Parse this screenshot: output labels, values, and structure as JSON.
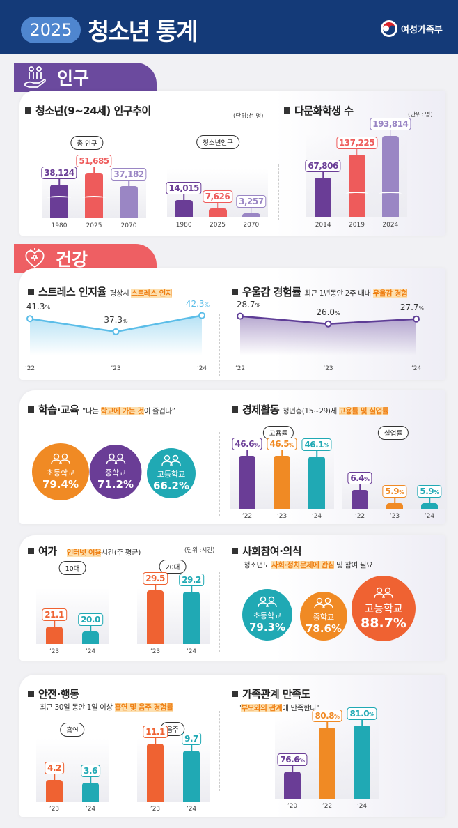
{
  "header": {
    "year": "2025",
    "title": "청소년 통계",
    "ministry": "여성가족부"
  },
  "colors": {
    "navy": "#143a78",
    "purple": "#6a3d96",
    "red": "#ee5b5b",
    "lavender": "#9a86c4",
    "orange": "#f08a24",
    "teal": "#20a9b4",
    "orange_red": "#ef6232",
    "sky": "#5bbde8"
  },
  "population": {
    "tab": "인구",
    "tab_icon": "hand-people-icon",
    "trend_title": "청소년(9~24세) 인구추이",
    "trend_unit": "(단위:천 명)",
    "multi_title": "다문화학생 수",
    "multi_unit": "(단위: 명)"
  },
  "health": {
    "tab": "건강",
    "tab_icon": "heart-puzzle-icon",
    "stress_title": "스트레스 인지율",
    "stress_sub_pre": "평상시 ",
    "stress_sub_hl": "스트레스 인지",
    "dep_title": "우울감 경험률",
    "dep_sub_pre": "최근 1년동안 2주 내내 ",
    "dep_sub_hl": "우울감 경험"
  },
  "education": {
    "title": "학습·교육",
    "sub_pre": "“나는 ",
    "sub_hl": "학교에 가는 것",
    "sub_post": "이 즐겁다”",
    "circles": [
      {
        "label": "초등학교",
        "value": "79.4%",
        "color": "#f08a24"
      },
      {
        "label": "중학교",
        "value": "71.2%",
        "color": "#6a3d96"
      },
      {
        "label": "고등학교",
        "value": "66.2%",
        "color": "#20a9b4"
      }
    ]
  },
  "economy": {
    "title": "경제활동",
    "sub_pre": "청년층(15~29)세 ",
    "sub_hl": "고용률 및 실업률"
  },
  "leisure": {
    "title": "여가",
    "sub_hl": "인터넷 이용",
    "sub_post": "시간(주 평균)",
    "unit": "(단위 :시간)"
  },
  "social": {
    "title": "사회참여·의식",
    "sub_pre": "청소년도 ",
    "sub_hl": "사회·정치문제에 관심",
    "sub_post": " 및 참여 필요",
    "circles": [
      {
        "label": "초등학교",
        "value": "79.3%",
        "color": "#20a9b4"
      },
      {
        "label": "중학교",
        "value": "78.6%",
        "color": "#f08a24"
      },
      {
        "label": "고등학교",
        "value": "88.7%",
        "color": "#ef6232"
      }
    ]
  },
  "safety": {
    "title": "안전·행동",
    "sub_pre": "최근 30일 동안 1일 이상 ",
    "sub_hl": "흡연 및 음주 경험률"
  },
  "family": {
    "title": "가족관계 만족도",
    "sub_pre": "\"",
    "sub_hl": "부모와의 관계",
    "sub_post": "에 만족한다\""
  },
  "chart_data": [
    {
      "type": "bar",
      "pill": "총 인구",
      "categories": [
        "1980",
        "2025",
        "2070"
      ],
      "values": [
        38124,
        51685,
        37182
      ],
      "colors": [
        "#6a3d96",
        "#ee5b5b",
        "#9a86c4"
      ],
      "format": "comma",
      "ylim": [
        0,
        56000
      ],
      "axis_break": true
    },
    {
      "type": "bar",
      "pill": "청소년인구",
      "categories": [
        "1980",
        "2025",
        "2070"
      ],
      "values": [
        14015,
        7626,
        3257
      ],
      "colors": [
        "#6a3d96",
        "#ee5b5b",
        "#9a86c4"
      ],
      "format": "comma",
      "ylim": [
        0,
        40000
      ]
    },
    {
      "type": "bar",
      "categories": [
        "2014",
        "2019",
        "2024"
      ],
      "values": [
        67806,
        137225,
        193814
      ],
      "colors": [
        "#6a3d96",
        "#ee5b5b",
        "#9a86c4"
      ],
      "format": "comma",
      "ylim": [
        -50000,
        200000
      ],
      "axis_break": true
    },
    {
      "type": "line",
      "categories": [
        "’22",
        "’23",
        "’24"
      ],
      "values": [
        41.3,
        37.3,
        42.3
      ],
      "suffix": "%",
      "color": "#5bbde8",
      "ylim": [
        30,
        45
      ]
    },
    {
      "type": "line",
      "categories": [
        "’22",
        "’23",
        "’24"
      ],
      "values": [
        28.7,
        26.0,
        27.7
      ],
      "suffix": "%",
      "color": "#5e3d96",
      "ylim": [
        15,
        32
      ]
    },
    {
      "type": "bar",
      "pill": "고용률",
      "categories": [
        "’22",
        "’23",
        "’24"
      ],
      "values": [
        46.6,
        46.5,
        46.1
      ],
      "suffix": "%",
      "colors": [
        "#6a3d96",
        "#f08a24",
        "#20a9b4"
      ],
      "ylim": [
        0,
        55
      ]
    },
    {
      "type": "bar",
      "pill": "실업률",
      "categories": [
        "’22",
        "’23",
        "’24"
      ],
      "values": [
        6.4,
        5.9,
        5.9
      ],
      "suffix": "%",
      "colors": [
        "#6a3d96",
        "#f08a24",
        "#20a9b4"
      ],
      "ylim": [
        5.7,
        7
      ]
    },
    {
      "type": "bar",
      "pill": "10대",
      "categories": [
        "’23",
        "’24"
      ],
      "values": [
        21.1,
        20.0
      ],
      "colors": [
        "#ef6232",
        "#20a9b4"
      ],
      "ylim": [
        17,
        30
      ]
    },
    {
      "type": "bar",
      "pill": "20대",
      "categories": [
        "’23",
        "’24"
      ],
      "values": [
        29.5,
        29.2
      ],
      "colors": [
        "#ef6232",
        "#20a9b4"
      ],
      "ylim": [
        17,
        30
      ]
    },
    {
      "type": "bar",
      "pill": "흡연",
      "categories": [
        "’23",
        "’24"
      ],
      "values": [
        4.2,
        3.6
      ],
      "colors": [
        "#ef6232",
        "#20a9b4"
      ],
      "ylim": [
        0,
        12
      ]
    },
    {
      "type": "bar",
      "pill": "음주",
      "categories": [
        "’23",
        "’24"
      ],
      "values": [
        11.1,
        9.7
      ],
      "colors": [
        "#ef6232",
        "#20a9b4"
      ],
      "ylim": [
        0,
        12
      ]
    },
    {
      "type": "bar",
      "categories": [
        "’20",
        "’22",
        "’24"
      ],
      "values": [
        76.6,
        80.8,
        81.0
      ],
      "suffix": "%",
      "colors": [
        "#6a3d96",
        "#f08a24",
        "#20a9b4"
      ],
      "ylim": [
        74,
        82
      ]
    }
  ]
}
